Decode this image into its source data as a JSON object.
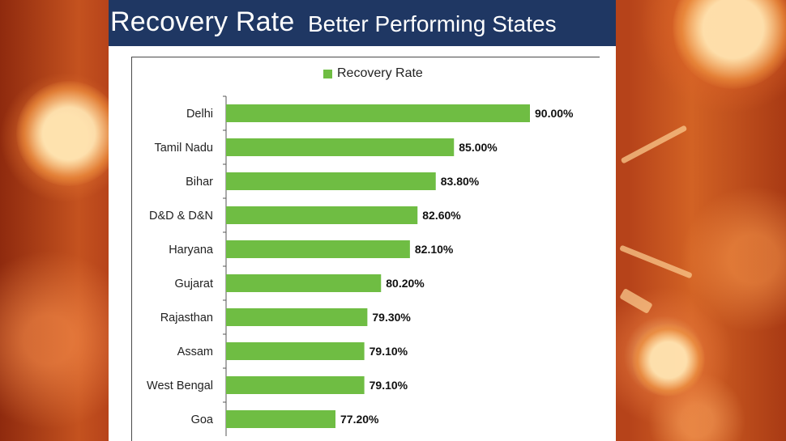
{
  "title": "Recovery Rate",
  "subtitle": "Better Performing States",
  "colors": {
    "bar": "#6fbd43",
    "title_bg": "#1f3763",
    "background": "#b8421a"
  },
  "chart_data": {
    "type": "bar",
    "orientation": "horizontal",
    "legend": [
      "Recovery Rate"
    ],
    "legend_position": "top",
    "categories": [
      "Delhi",
      "Tamil Nadu",
      "Bihar",
      "D&D & D&N",
      "Haryana",
      "Gujarat",
      "Rajasthan",
      "Assam",
      "West Bengal",
      "Goa"
    ],
    "series": [
      {
        "name": "Recovery Rate",
        "values": [
          90.0,
          85.0,
          83.8,
          82.6,
          82.1,
          80.2,
          79.3,
          79.1,
          79.1,
          77.2
        ],
        "labels": [
          "90.00%",
          "85.00%",
          "83.80%",
          "82.60%",
          "82.10%",
          "80.20%",
          "79.30%",
          "79.10%",
          "79.10%",
          "77.20%"
        ]
      }
    ],
    "xlim": [
      70,
      90
    ],
    "grid": false
  }
}
